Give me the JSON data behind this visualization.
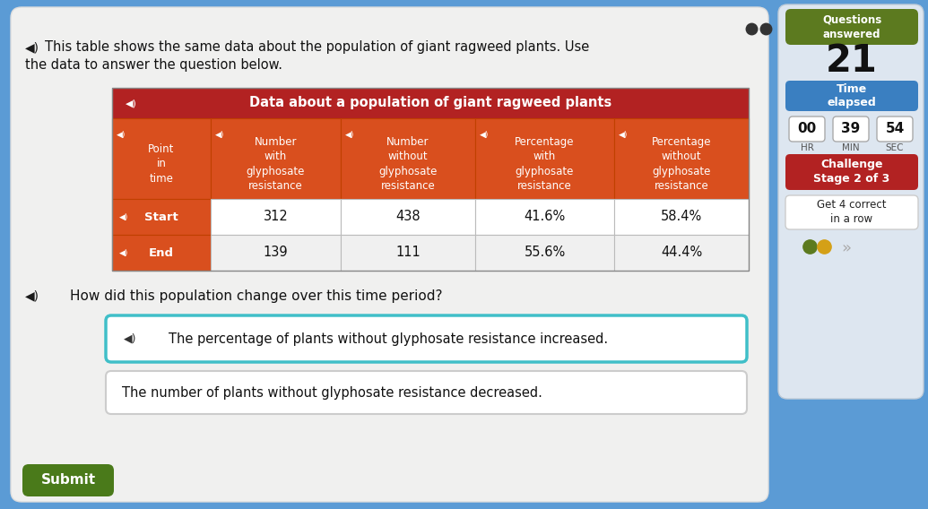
{
  "bg_color": "#5b9bd5",
  "main_bg": "#f0f0ef",
  "title_text1": "This table shows the same data about the population of giant ragweed plants. Use",
  "title_text2": "the data to answer the question below.",
  "table_title": "Data about a population of giant ragweed plants",
  "table_header_bg": "#b22222",
  "table_subheader_bg": "#d94f1e",
  "table_row_bg": "#f5f5f5",
  "table_border_color": "#999999",
  "col_headers": [
    "Point\nin\ntime",
    "Number\nwith\nglyphosate\nresistance",
    "Number\nwithout\nglyphosate\nresistance",
    "Percentage\nwith\nglyphosate\nresistance",
    "Percentage\nwithout\nglyphosate\nresistance"
  ],
  "row1_label": "Start",
  "row2_label": "End",
  "row1_data": [
    "312",
    "438",
    "41.6%",
    "58.4%"
  ],
  "row2_data": [
    "139",
    "111",
    "55.6%",
    "44.4%"
  ],
  "question_text": "How did this population change over this time period?",
  "answer1": "The percentage of plants without glyphosate resistance increased.",
  "answer2": "The number of plants without glyphosate resistance decreased.",
  "sidebar_title_bg": "#5c7a1f",
  "sidebar_title_text": "Questions\nanswered",
  "sidebar_number": "21",
  "sidebar_time_bg": "#3a7fc1",
  "sidebar_time_text": "Time\nelapsed",
  "timer_hr": "00",
  "timer_min": "39",
  "timer_sec": "54",
  "challenge_bg": "#b22222",
  "challenge_text": "Challenge\nStage 2 of 3",
  "get_correct_text": "Get 4 correct\nin a row",
  "submit_bg": "#4a7a1a",
  "submit_text": "Submit"
}
